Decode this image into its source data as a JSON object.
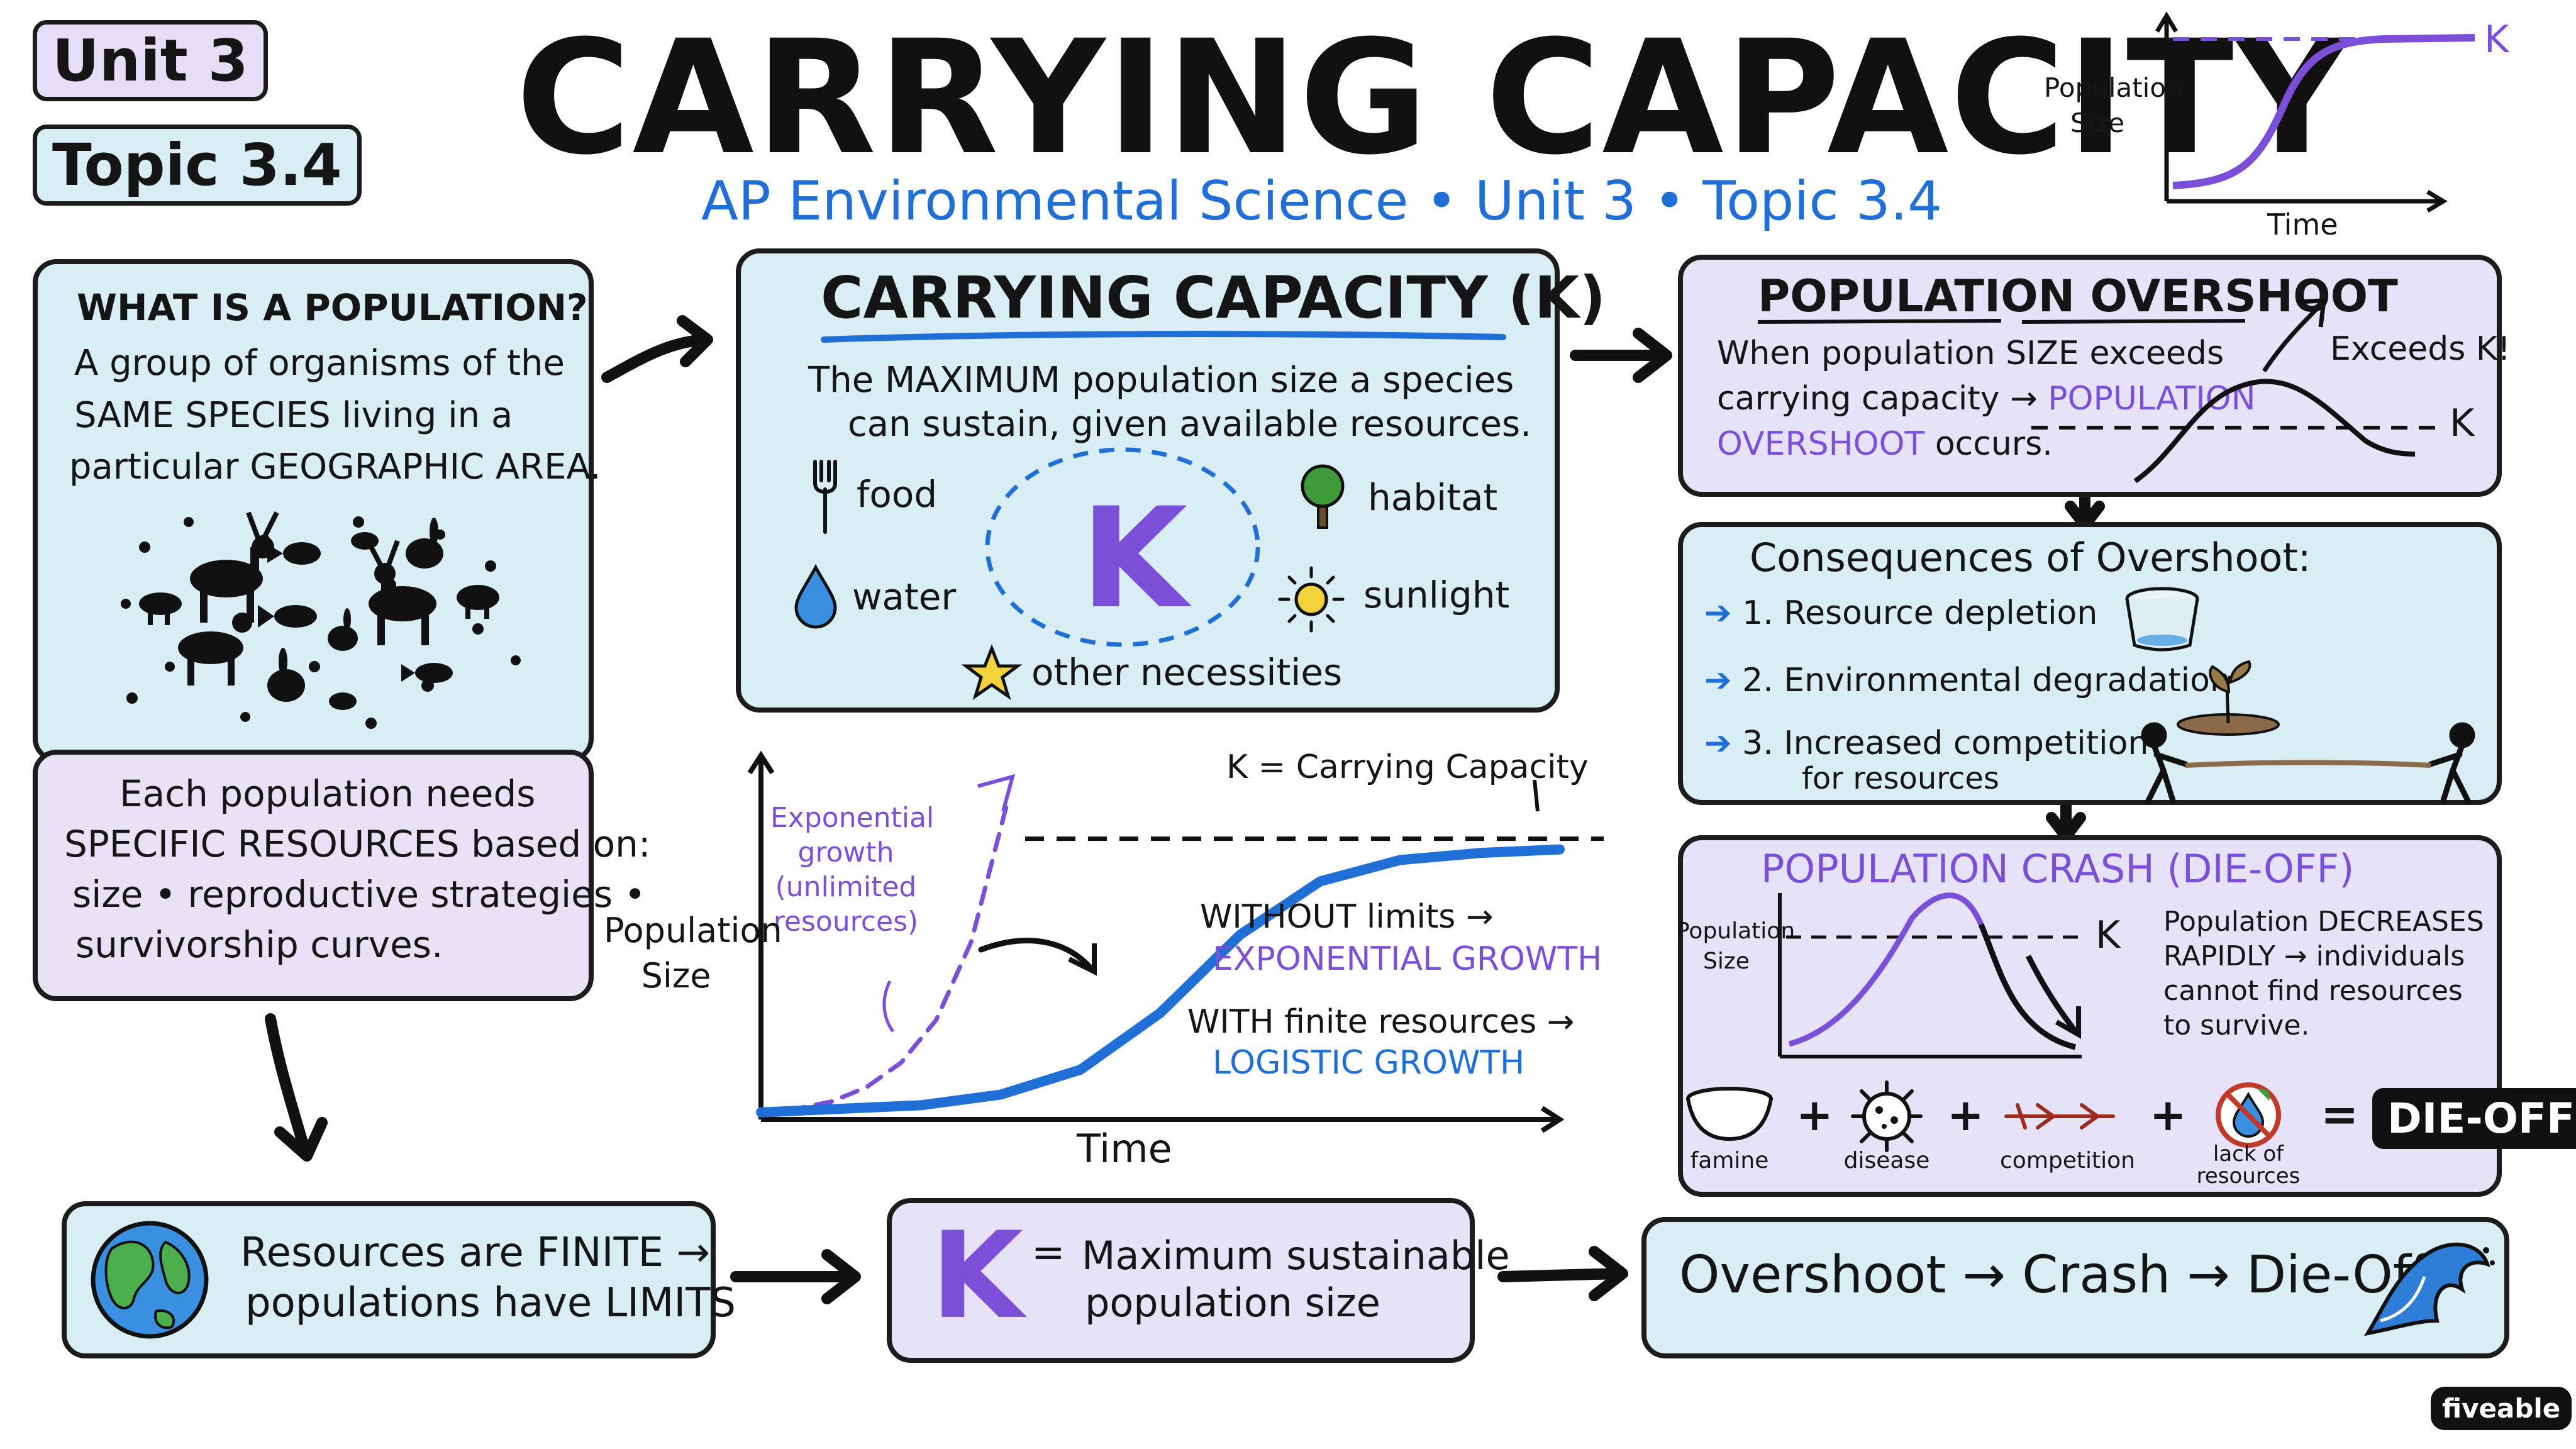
{
  "header": {
    "unit_tag": "Unit 3",
    "topic_tag": "Topic 3.4",
    "title": "CARRYING CAPACITY",
    "subtitle": "AP Environmental Science • Unit 3 • Topic 3.4",
    "mini_chart": {
      "ylabel": "Population Size",
      "xlabel": "Time",
      "k_label": "K"
    }
  },
  "population_box": {
    "heading": "WHAT IS A POPULATION?",
    "line1": "A group of organisms of the",
    "line2": "SAME SPECIES living in a",
    "line3": "particular GEOGRAPHIC AREA."
  },
  "resources_box": {
    "line1": "Each population needs",
    "line2": "SPECIFIC RESOURCES based on:",
    "line3": "size • reproductive strategies •",
    "line4": "survivorship curves."
  },
  "k_box": {
    "heading": "CARRYING CAPACITY (K)",
    "line1": "The MAXIMUM population size a species",
    "line2": "can sustain, given available resources.",
    "center_letter": "K",
    "items": {
      "food": "food",
      "water": "water",
      "habitat": "habitat",
      "sunlight": "sunlight",
      "other": "other necessities"
    }
  },
  "growth_chart": {
    "k_label": "K = Carrying Capacity",
    "exp_label": [
      "Exponential",
      "growth",
      "(unlimited",
      "resources)"
    ],
    "ylabel": [
      "Population",
      "Size"
    ],
    "xlabel": "Time",
    "without_line": "WITHOUT limits →",
    "without_value": "EXPONENTIAL GROWTH",
    "with_line": "WITH finite resources →",
    "with_value": "LOGISTIC GROWTH"
  },
  "chart_data": {
    "type": "line",
    "title": "",
    "xlabel": "Time",
    "ylabel": "Population Size",
    "series": [
      {
        "name": "Exponential growth (unlimited resources)",
        "color": "#7b4fd8",
        "style": "dashed",
        "x": [
          0,
          1,
          2,
          3,
          4,
          5,
          6,
          7
        ],
        "y": [
          2,
          3,
          5,
          9,
          16,
          28,
          50,
          88
        ]
      },
      {
        "name": "",
        "color": "#1f6fd6",
        "style": "solid",
        "x": [
          0,
          1,
          2,
          3,
          4,
          5,
          6,
          7,
          8,
          9,
          10
        ],
        "y": [
          2,
          3,
          4,
          7,
          14,
          30,
          52,
          67,
          73,
          75,
          76
        ]
      }
    ],
    "annotations": [
      {
        "text": "K = Carrying Capacity",
        "y": 79
      }
    ]
  },
  "overshoot_box": {
    "heading": "POPULATION OVERSHOOT",
    "line1": "When population SIZE exceeds",
    "line2": "carrying capacity →",
    "line2_em": "POPULATION",
    "line3_em": "OVERSHOOT",
    "line3": "occurs.",
    "exceeds": "Exceeds K!",
    "k_label": "K"
  },
  "consequences_box": {
    "heading": "Consequences of Overshoot:",
    "items": [
      "1. Resource depletion",
      "2. Environmental degradation",
      "3. Increased competition",
      "for resources"
    ]
  },
  "crash_box": {
    "heading": "POPULATION CRASH (DIE-OFF)",
    "ylabel": [
      "Population",
      "Size"
    ],
    "k_label": "K",
    "desc1": "Population DECREASES",
    "desc2": "RAPIDLY → individuals",
    "desc3": "cannot find resources",
    "desc4": "to survive.",
    "famine": "famine",
    "disease": "disease",
    "competition": "competition",
    "lack1": "lack of",
    "lack2": "resources",
    "dieoff": "DIE-OFF"
  },
  "bottom": {
    "finite_line1": "Resources are FINITE →",
    "finite_line2": "populations have LIMITS",
    "k_letter": "K",
    "k_eq": "=",
    "k_line1": "Maximum sustainable",
    "k_line2": "population size",
    "sequence": "Overshoot → Crash → Die-Off"
  },
  "brand": "fiveable",
  "colors": {
    "blue_panel": "#d8eef4",
    "purple_panel": "#e9e2f7",
    "accent_blue": "#1f6fd6",
    "accent_purple": "#7b4fd8"
  }
}
